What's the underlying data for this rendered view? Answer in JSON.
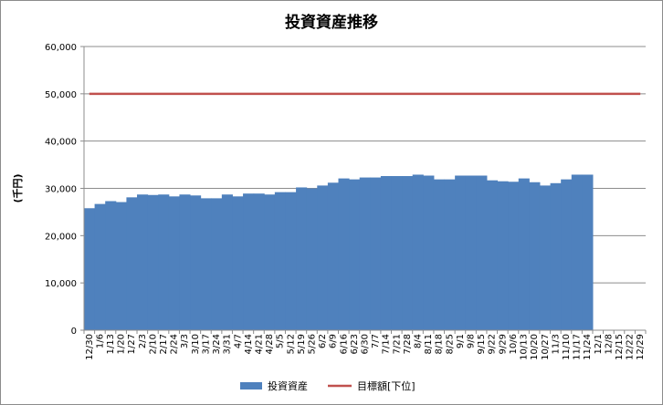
{
  "chart_data": {
    "type": "bar",
    "title": "投資資産推移",
    "ylabel": "(千円)",
    "xlabel": "",
    "ylim": [
      0,
      60000
    ],
    "yticks": [
      "0",
      "10,000",
      "20,000",
      "30,000",
      "40,000",
      "50,000",
      "60,000"
    ],
    "ytick_values": [
      0,
      10000,
      20000,
      30000,
      40000,
      50000,
      60000
    ],
    "grid": true,
    "legend_position": "bottom",
    "categories": [
      "12/30",
      "1/6",
      "1/13",
      "1/20",
      "1/27",
      "2/3",
      "2/10",
      "2/17",
      "2/24",
      "3/3",
      "3/10",
      "3/17",
      "3/24",
      "3/31",
      "4/7",
      "4/14",
      "4/21",
      "4/28",
      "5/5",
      "5/12",
      "5/19",
      "5/26",
      "6/2",
      "6/9",
      "6/16",
      "6/23",
      "6/30",
      "7/7",
      "7/14",
      "7/21",
      "7/28",
      "8/4",
      "8/11",
      "8/18",
      "8/25",
      "9/1",
      "9/8",
      "9/15",
      "9/22",
      "9/29",
      "10/6",
      "10/13",
      "10/20",
      "10/27",
      "11/3",
      "11/10",
      "11/17",
      "11/24",
      "12/1",
      "12/8",
      "12/15",
      "12/22",
      "12/29"
    ],
    "series": [
      {
        "name": "投資資産",
        "type": "bar",
        "color": "#4f81bd",
        "values": [
          25800,
          26700,
          27300,
          27100,
          28100,
          28700,
          28600,
          28700,
          28300,
          28700,
          28500,
          27900,
          27900,
          28700,
          28300,
          28900,
          28900,
          28700,
          29200,
          29200,
          30200,
          30000,
          30600,
          31200,
          32100,
          31900,
          32300,
          32300,
          32600,
          32600,
          32600,
          32900,
          32700,
          31900,
          31900,
          32700,
          32700,
          32700,
          31700,
          31500,
          31400,
          32100,
          31300,
          30600,
          31100,
          31900,
          32900,
          32900,
          null,
          null,
          null,
          null,
          null
        ]
      },
      {
        "name": "目標額[下位]",
        "type": "line",
        "color": "#c0504d",
        "values": [
          50000,
          50000,
          50000,
          50000,
          50000,
          50000,
          50000,
          50000,
          50000,
          50000,
          50000,
          50000,
          50000,
          50000,
          50000,
          50000,
          50000,
          50000,
          50000,
          50000,
          50000,
          50000,
          50000,
          50000,
          50000,
          50000,
          50000,
          50000,
          50000,
          50000,
          50000,
          50000,
          50000,
          50000,
          50000,
          50000,
          50000,
          50000,
          50000,
          50000,
          50000,
          50000,
          50000,
          50000,
          50000,
          50000,
          50000,
          50000,
          50000,
          50000,
          50000,
          50000,
          50000
        ]
      }
    ]
  },
  "colors": {
    "grid": "#8c8c8c",
    "axis": "#8c8c8c"
  }
}
